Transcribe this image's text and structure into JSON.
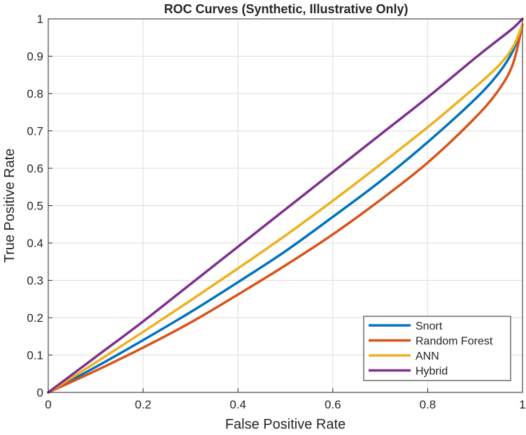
{
  "chart_data": {
    "type": "line",
    "title": "ROC Curves (Synthetic, Illustrative Only)",
    "xlabel": "False Positive Rate",
    "ylabel": "True Positive Rate",
    "xlim": [
      0,
      1
    ],
    "ylim": [
      0,
      1
    ],
    "grid": true,
    "legend_position": "bottom-right",
    "xticks": [
      "0",
      "0.2",
      "0.4",
      "0.6",
      "0.8",
      "1"
    ],
    "yticks": [
      "0",
      "0.1",
      "0.2",
      "0.3",
      "0.4",
      "0.5",
      "0.6",
      "0.7",
      "0.8",
      "0.9",
      "1"
    ],
    "x": [
      0,
      0.1,
      0.2,
      0.3,
      0.4,
      0.5,
      0.6,
      0.7,
      0.8,
      0.9,
      0.95,
      0.98,
      1
    ],
    "series": [
      {
        "name": "Snort",
        "color": "#0072BD",
        "values": [
          0,
          0.068,
          0.14,
          0.215,
          0.295,
          0.378,
          0.47,
          0.565,
          0.67,
          0.785,
          0.855,
          0.915,
          0.985
        ]
      },
      {
        "name": "Random Forest",
        "color": "#D95319",
        "values": [
          0,
          0.058,
          0.12,
          0.187,
          0.262,
          0.34,
          0.423,
          0.515,
          0.615,
          0.735,
          0.81,
          0.88,
          0.985
        ]
      },
      {
        "name": "ANN",
        "color": "#EDB120",
        "values": [
          0,
          0.08,
          0.162,
          0.246,
          0.332,
          0.42,
          0.513,
          0.61,
          0.71,
          0.817,
          0.875,
          0.925,
          0.985
        ]
      },
      {
        "name": "Hybrid",
        "color": "#7E2F8E",
        "values": [
          0,
          0.095,
          0.19,
          0.29,
          0.39,
          0.49,
          0.59,
          0.69,
          0.79,
          0.895,
          0.945,
          0.975,
          1.0
        ]
      }
    ]
  }
}
